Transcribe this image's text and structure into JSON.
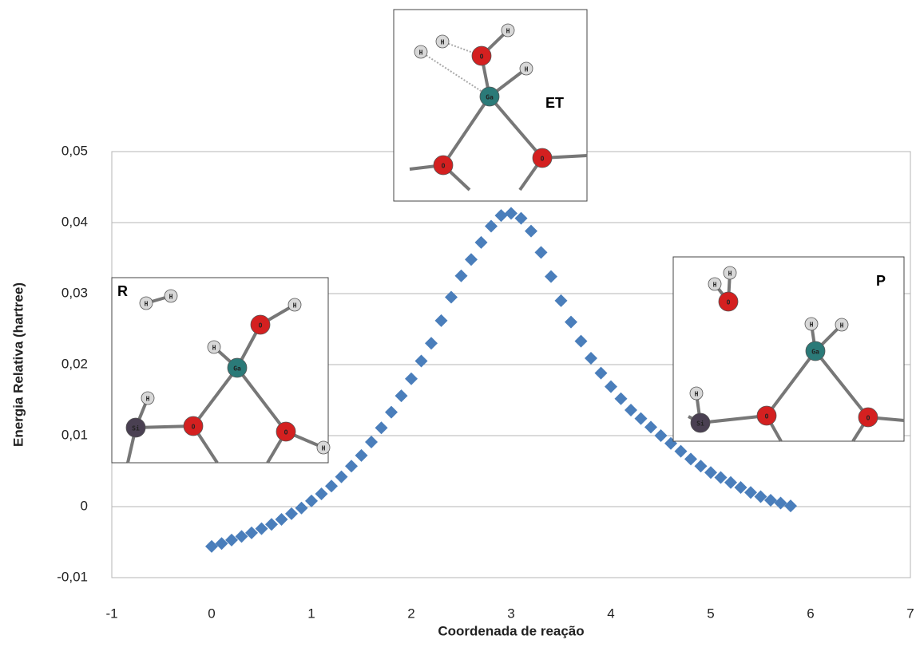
{
  "chart_data": {
    "type": "scatter",
    "x_label": "Coordenada de reação",
    "y_label": "Energia Relativa (hartree)",
    "xlim": [
      -1,
      7
    ],
    "xticks": [
      -1,
      0,
      1,
      2,
      3,
      4,
      5,
      6,
      7
    ],
    "ylim": [
      -0.01,
      0.05
    ],
    "yticks": [
      {
        "value": -0.01,
        "label": "-0,01"
      },
      0,
      {
        "value": 0.01,
        "label": "0,01"
      },
      {
        "value": 0.02,
        "label": "0,02"
      },
      {
        "value": 0.03,
        "label": "0,03"
      },
      {
        "value": 0.04,
        "label": "0,04"
      },
      {
        "value": 0.05,
        "label": "0,05"
      }
    ],
    "grid": true,
    "color": "#4a7ebb",
    "marker": "diamond",
    "x": [
      0,
      0.1,
      0.2,
      0.3,
      0.4,
      0.5,
      0.6,
      0.7,
      0.8,
      0.9,
      1.0,
      1.1,
      1.2,
      1.3,
      1.4,
      1.5,
      1.6,
      1.7,
      1.8,
      1.9,
      2.0,
      2.1,
      2.2,
      2.3,
      2.4,
      2.5,
      2.6,
      2.7,
      2.8,
      2.9,
      3.0,
      3.1,
      3.2,
      3.3,
      3.4,
      3.5,
      3.6,
      3.7,
      3.8,
      3.9,
      4.0,
      4.1,
      4.2,
      4.3,
      4.4,
      4.5,
      4.6,
      4.7,
      4.8,
      4.9,
      5.0,
      5.1,
      5.2,
      5.3,
      5.4,
      5.5,
      5.6,
      5.7,
      5.8
    ],
    "values": [
      -0.0056,
      -0.0052,
      -0.0047,
      -0.0042,
      -0.0037,
      -0.0031,
      -0.0025,
      -0.0018,
      -0.001,
      -0.0002,
      0.0008,
      0.0018,
      0.0029,
      0.0042,
      0.0057,
      0.0072,
      0.0091,
      0.0111,
      0.0133,
      0.0156,
      0.018,
      0.0205,
      0.023,
      0.0262,
      0.0295,
      0.0325,
      0.0348,
      0.0372,
      0.0395,
      0.041,
      0.0413,
      0.0406,
      0.0388,
      0.0358,
      0.0324,
      0.029,
      0.026,
      0.0233,
      0.0209,
      0.0188,
      0.0169,
      0.0152,
      0.0136,
      0.0124,
      0.0112,
      0.01,
      0.0089,
      0.0078,
      0.0067,
      0.0057,
      0.0048,
      0.0041,
      0.0034,
      0.0027,
      0.002,
      0.0014,
      0.0009,
      0.0005,
      0.0001
    ],
    "insets": [
      {
        "label": "R",
        "atoms": [
          "H",
          "H",
          "O",
          "H",
          "H",
          "Ga",
          "H",
          "Si",
          "O",
          "O",
          "H"
        ]
      },
      {
        "label": "ET",
        "atoms": [
          "H",
          "H",
          "O",
          "H",
          "H",
          "Ga",
          "O",
          "O"
        ]
      },
      {
        "label": "P",
        "atoms": [
          "H",
          "H",
          "O",
          "Ga",
          "H",
          "H",
          "O",
          "O",
          "Si",
          "H"
        ]
      }
    ]
  }
}
